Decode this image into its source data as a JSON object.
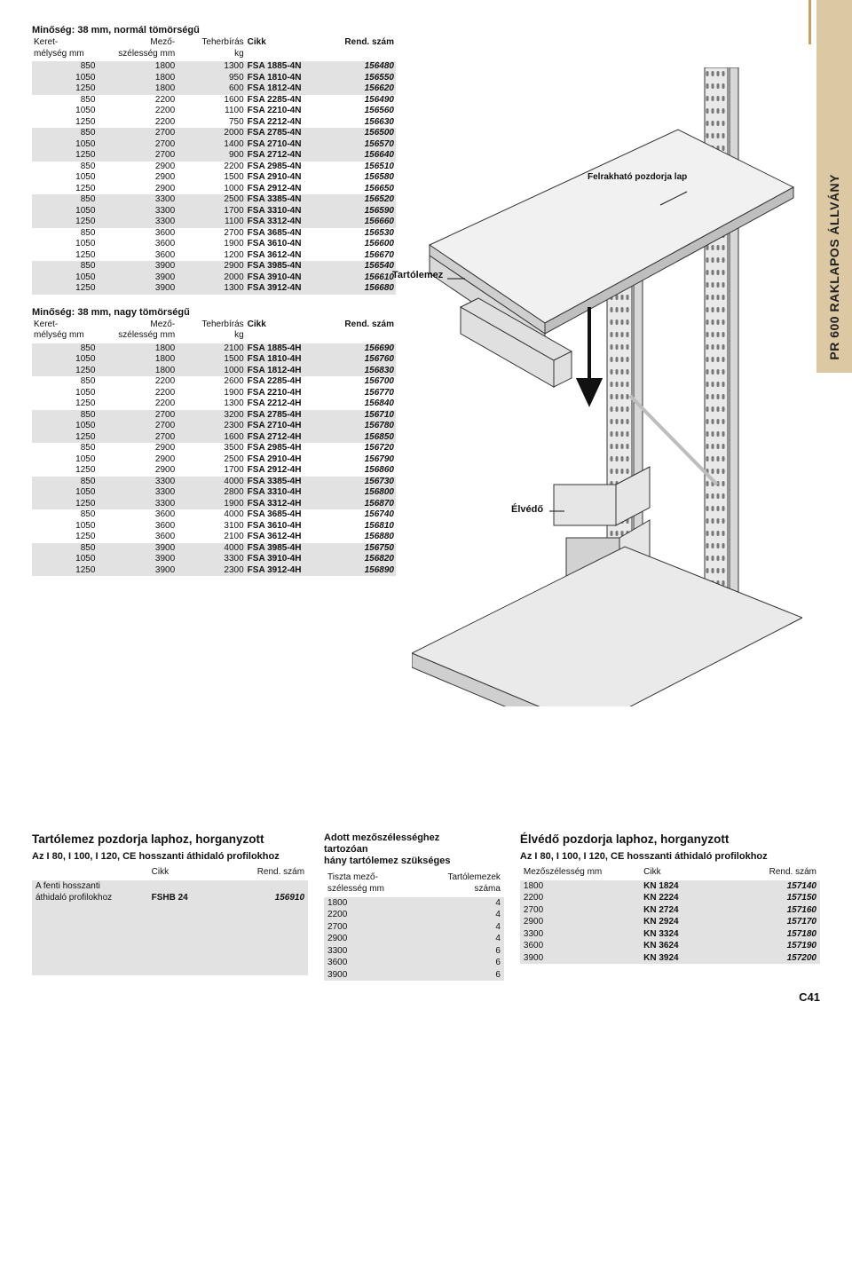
{
  "sideTab": "PR 600 RAKLAPOS ÁLLVÁNY",
  "pageNumber": "C41",
  "table1": {
    "title": "Minőség: 38 mm, normál tömörségű",
    "headers": {
      "c1a": "Keret-",
      "c1b": "mélység mm",
      "c2a": "Mező-",
      "c2b": "szélesség mm",
      "c3a": "Teherbírás",
      "c3b": "kg",
      "c4": "Cikk",
      "c5": "Rend. szám"
    },
    "groups": [
      [
        [
          "850",
          "1800",
          "1300",
          "FSA 1885-4N",
          "156480"
        ],
        [
          "1050",
          "1800",
          "950",
          "FSA 1810-4N",
          "156550"
        ],
        [
          "1250",
          "1800",
          "600",
          "FSA 1812-4N",
          "156620"
        ]
      ],
      [
        [
          "850",
          "2200",
          "1600",
          "FSA 2285-4N",
          "156490"
        ],
        [
          "1050",
          "2200",
          "1100",
          "FSA 2210-4N",
          "156560"
        ],
        [
          "1250",
          "2200",
          "750",
          "FSA 2212-4N",
          "156630"
        ]
      ],
      [
        [
          "850",
          "2700",
          "2000",
          "FSA 2785-4N",
          "156500"
        ],
        [
          "1050",
          "2700",
          "1400",
          "FSA 2710-4N",
          "156570"
        ],
        [
          "1250",
          "2700",
          "900",
          "FSA 2712-4N",
          "156640"
        ]
      ],
      [
        [
          "850",
          "2900",
          "2200",
          "FSA 2985-4N",
          "156510"
        ],
        [
          "1050",
          "2900",
          "1500",
          "FSA 2910-4N",
          "156580"
        ],
        [
          "1250",
          "2900",
          "1000",
          "FSA 2912-4N",
          "156650"
        ]
      ],
      [
        [
          "850",
          "3300",
          "2500",
          "FSA 3385-4N",
          "156520"
        ],
        [
          "1050",
          "3300",
          "1700",
          "FSA 3310-4N",
          "156590"
        ],
        [
          "1250",
          "3300",
          "1100",
          "FSA 3312-4N",
          "156660"
        ]
      ],
      [
        [
          "850",
          "3600",
          "2700",
          "FSA 3685-4N",
          "156530"
        ],
        [
          "1050",
          "3600",
          "1900",
          "FSA 3610-4N",
          "156600"
        ],
        [
          "1250",
          "3600",
          "1200",
          "FSA 3612-4N",
          "156670"
        ]
      ],
      [
        [
          "850",
          "3900",
          "2900",
          "FSA 3985-4N",
          "156540"
        ],
        [
          "1050",
          "3900",
          "2000",
          "FSA 3910-4N",
          "156610"
        ],
        [
          "1250",
          "3900",
          "1300",
          "FSA 3912-4N",
          "156680"
        ]
      ]
    ]
  },
  "table2": {
    "title": "Minőség: 38 mm, nagy tömörségű",
    "headers": {
      "c1a": "Keret-",
      "c1b": "mélység mm",
      "c2a": "Mező-",
      "c2b": "szélesség mm",
      "c3a": "Teherbírás",
      "c3b": "kg",
      "c4": "Cikk",
      "c5": "Rend. szám"
    },
    "groups": [
      [
        [
          "850",
          "1800",
          "2100",
          "FSA 1885-4H",
          "156690"
        ],
        [
          "1050",
          "1800",
          "1500",
          "FSA 1810-4H",
          "156760"
        ],
        [
          "1250",
          "1800",
          "1000",
          "FSA 1812-4H",
          "156830"
        ]
      ],
      [
        [
          "850",
          "2200",
          "2600",
          "FSA 2285-4H",
          "156700"
        ],
        [
          "1050",
          "2200",
          "1900",
          "FSA 2210-4H",
          "156770"
        ],
        [
          "1250",
          "2200",
          "1300",
          "FSA 2212-4H",
          "156840"
        ]
      ],
      [
        [
          "850",
          "2700",
          "3200",
          "FSA 2785-4H",
          "156710"
        ],
        [
          "1050",
          "2700",
          "2300",
          "FSA 2710-4H",
          "156780"
        ],
        [
          "1250",
          "2700",
          "1600",
          "FSA 2712-4H",
          "156850"
        ]
      ],
      [
        [
          "850",
          "2900",
          "3500",
          "FSA 2985-4H",
          "156720"
        ],
        [
          "1050",
          "2900",
          "2500",
          "FSA 2910-4H",
          "156790"
        ],
        [
          "1250",
          "2900",
          "1700",
          "FSA 2912-4H",
          "156860"
        ]
      ],
      [
        [
          "850",
          "3300",
          "4000",
          "FSA 3385-4H",
          "156730"
        ],
        [
          "1050",
          "3300",
          "2800",
          "FSA 3310-4H",
          "156800"
        ],
        [
          "1250",
          "3300",
          "1900",
          "FSA 3312-4H",
          "156870"
        ]
      ],
      [
        [
          "850",
          "3600",
          "4000",
          "FSA 3685-4H",
          "156740"
        ],
        [
          "1050",
          "3600",
          "3100",
          "FSA 3610-4H",
          "156810"
        ],
        [
          "1250",
          "3600",
          "2100",
          "FSA 3612-4H",
          "156880"
        ]
      ],
      [
        [
          "850",
          "3900",
          "4000",
          "FSA 3985-4H",
          "156750"
        ],
        [
          "1050",
          "3900",
          "3300",
          "FSA 3910-4H",
          "156820"
        ],
        [
          "1250",
          "3900",
          "2300",
          "FSA 3912-4H",
          "156890"
        ]
      ]
    ]
  },
  "diagramLabels": {
    "tartolemez": "Tartólemez",
    "pozdorja": "Felrakható pozdorja lap",
    "elvedo": "Élvédő"
  },
  "bottom": {
    "left": {
      "title": "Tartólemez pozdorja laphoz, horganyzott",
      "sub": "Az   I 80, I 100, I 120, CE hosszanti áthidaló profilokhoz",
      "h": {
        "c1": "Cikk",
        "c2": "Rend. szám"
      },
      "rowLabel1": "A fenti hosszanti",
      "rowLabel2": "áthidaló profilokhoz",
      "cikk": "FSHB 24",
      "rend": "156910"
    },
    "mid": {
      "title1": "Adott mezőszélességhez",
      "title2": "tartozóan",
      "title3": "hány tartólemez szükséges",
      "h": {
        "c1a": "Tiszta mező-",
        "c1b": "szélesség mm",
        "c2a": "Tartólemezek",
        "c2b": "száma"
      },
      "rows": [
        [
          "1800",
          "4"
        ],
        [
          "2200",
          "4"
        ],
        [
          "2700",
          "4"
        ],
        [
          "2900",
          "4"
        ],
        [
          "3300",
          "6"
        ],
        [
          "3600",
          "6"
        ],
        [
          "3900",
          "6"
        ]
      ]
    },
    "right": {
      "title": "Élvédő pozdorja laphoz, horganyzott",
      "sub": "Az   I 80, I 100, I 120, CE hosszanti áthidaló profilokhoz",
      "h": {
        "c1": "Mezőszélesség mm",
        "c2": "Cikk",
        "c3": "Rend. szám"
      },
      "rows": [
        [
          "1800",
          "KN 1824",
          "157140"
        ],
        [
          "2200",
          "KN 2224",
          "157150"
        ],
        [
          "2700",
          "KN 2724",
          "157160"
        ],
        [
          "2900",
          "KN 2924",
          "157170"
        ],
        [
          "3300",
          "KN 3324",
          "157180"
        ],
        [
          "3600",
          "KN 3624",
          "157190"
        ],
        [
          "3900",
          "KN 3924",
          "157200"
        ]
      ]
    }
  }
}
